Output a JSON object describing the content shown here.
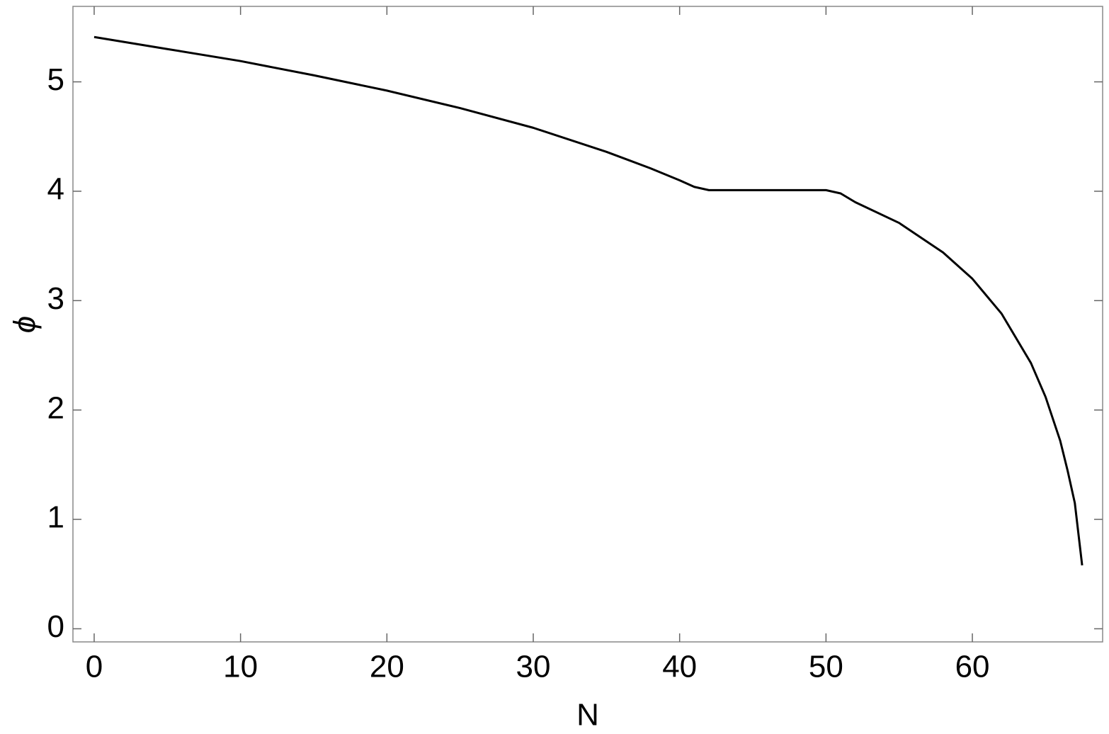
{
  "chart_data": {
    "type": "line",
    "x_label": "N",
    "y_label": "ϕ",
    "xlim": [
      -1.45,
      68.9
    ],
    "ylim": [
      -0.12,
      5.69
    ],
    "xticks": [
      0,
      10,
      20,
      30,
      40,
      50,
      60
    ],
    "yticks": [
      0,
      1,
      2,
      3,
      4,
      5
    ],
    "color": "#000000",
    "x": [
      0,
      5,
      10,
      15,
      20,
      25,
      30,
      35,
      38,
      40,
      41,
      42,
      45,
      50,
      51,
      52,
      55,
      58,
      60,
      62,
      64,
      65,
      66,
      66.5,
      67,
      67.5
    ],
    "values": [
      5.41,
      5.3,
      5.19,
      5.06,
      4.92,
      4.76,
      4.58,
      4.36,
      4.21,
      4.1,
      4.04,
      4.01,
      4.01,
      4.01,
      3.98,
      3.9,
      3.71,
      3.44,
      3.2,
      2.88,
      2.43,
      2.12,
      1.72,
      1.45,
      1.15,
      0.58
    ]
  }
}
